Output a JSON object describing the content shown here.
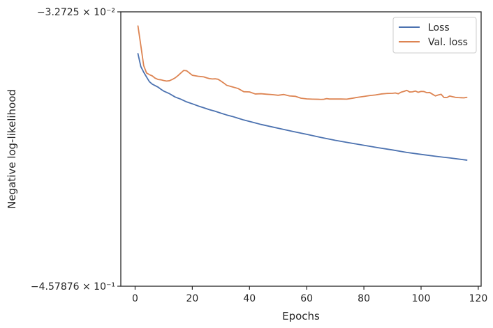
{
  "chart_data": {
    "type": "line",
    "title": "",
    "xlabel": "Epochs",
    "ylabel": "Negative log-likelihood",
    "xlim": [
      -5,
      121
    ],
    "ylim": [
      -0.457876,
      -0.032725
    ],
    "yscale": "symlog",
    "grid": false,
    "legend_position": "top-right",
    "x_ticks": [
      0,
      20,
      40,
      60,
      80,
      100,
      120
    ],
    "y_ticks": [
      {
        "value": -0.032725,
        "label": "−3.2725 × 10⁻²"
      },
      {
        "value": -0.457876,
        "label": "−4.57876 × 10⁻¹"
      }
    ],
    "series": [
      {
        "name": "Loss",
        "color": "#4c72b0",
        "x": [
          1,
          2,
          3,
          4,
          5,
          6,
          7,
          8,
          9,
          10,
          12,
          14,
          16,
          18,
          20,
          22,
          24,
          26,
          28,
          30,
          32,
          34,
          36,
          38,
          40,
          42,
          44,
          46,
          48,
          50,
          55,
          60,
          65,
          70,
          75,
          80,
          85,
          90,
          95,
          100,
          105,
          110,
          116
        ],
        "y": [
          -0.0975,
          -0.1175,
          -0.1262,
          -0.1337,
          -0.141,
          -0.1447,
          -0.147,
          -0.1493,
          -0.1526,
          -0.1555,
          -0.1595,
          -0.1647,
          -0.1681,
          -0.1722,
          -0.1752,
          -0.1785,
          -0.1814,
          -0.1843,
          -0.1868,
          -0.1897,
          -0.1925,
          -0.1948,
          -0.1976,
          -0.2003,
          -0.2025,
          -0.2048,
          -0.2072,
          -0.2091,
          -0.2111,
          -0.2131,
          -0.2179,
          -0.2225,
          -0.2274,
          -0.2318,
          -0.2357,
          -0.2395,
          -0.2433,
          -0.2467,
          -0.2506,
          -0.2536,
          -0.2565,
          -0.2591,
          -0.2625
        ]
      },
      {
        "name": "Val. loss",
        "color": "#dd8452",
        "x": [
          1,
          2,
          3,
          4,
          5,
          6,
          7,
          8,
          9,
          10,
          11,
          12,
          13,
          14,
          15,
          16,
          17,
          18,
          19,
          20,
          22,
          24,
          25,
          26,
          27,
          28,
          29,
          30,
          31,
          32,
          34,
          36,
          38,
          40,
          42,
          44,
          46,
          48,
          50,
          52,
          54,
          56,
          58,
          60,
          62,
          64,
          65,
          66,
          67,
          68,
          70,
          72,
          74,
          76,
          78,
          80,
          82,
          84,
          86,
          88,
          90,
          91,
          92,
          93,
          94,
          95,
          96,
          97,
          98,
          99,
          100,
          101,
          102,
          103,
          104,
          105,
          106,
          107,
          108,
          109,
          110,
          111,
          112,
          113,
          114,
          115,
          116
        ],
        "y": [
          -0.0546,
          -0.085,
          -0.116,
          -0.1275,
          -0.13,
          -0.132,
          -0.1355,
          -0.1375,
          -0.138,
          -0.1392,
          -0.14,
          -0.1395,
          -0.1375,
          -0.135,
          -0.1315,
          -0.1275,
          -0.1235,
          -0.124,
          -0.1275,
          -0.131,
          -0.1325,
          -0.1335,
          -0.135,
          -0.1362,
          -0.1367,
          -0.1365,
          -0.1372,
          -0.14,
          -0.143,
          -0.1465,
          -0.149,
          -0.1515,
          -0.1565,
          -0.1568,
          -0.16,
          -0.1596,
          -0.1604,
          -0.161,
          -0.162,
          -0.1608,
          -0.163,
          -0.1636,
          -0.1665,
          -0.1676,
          -0.168,
          -0.1682,
          -0.1684,
          -0.1682,
          -0.1672,
          -0.1678,
          -0.1678,
          -0.1678,
          -0.168,
          -0.1666,
          -0.165,
          -0.1638,
          -0.1625,
          -0.1615,
          -0.16,
          -0.1592,
          -0.159,
          -0.1584,
          -0.1597,
          -0.1572,
          -0.156,
          -0.1544,
          -0.1569,
          -0.1567,
          -0.1554,
          -0.1574,
          -0.156,
          -0.1562,
          -0.158,
          -0.1577,
          -0.1604,
          -0.163,
          -0.1615,
          -0.1605,
          -0.1654,
          -0.1656,
          -0.1632,
          -0.1642,
          -0.1652,
          -0.1656,
          -0.1658,
          -0.166,
          -0.1652
        ]
      }
    ]
  }
}
